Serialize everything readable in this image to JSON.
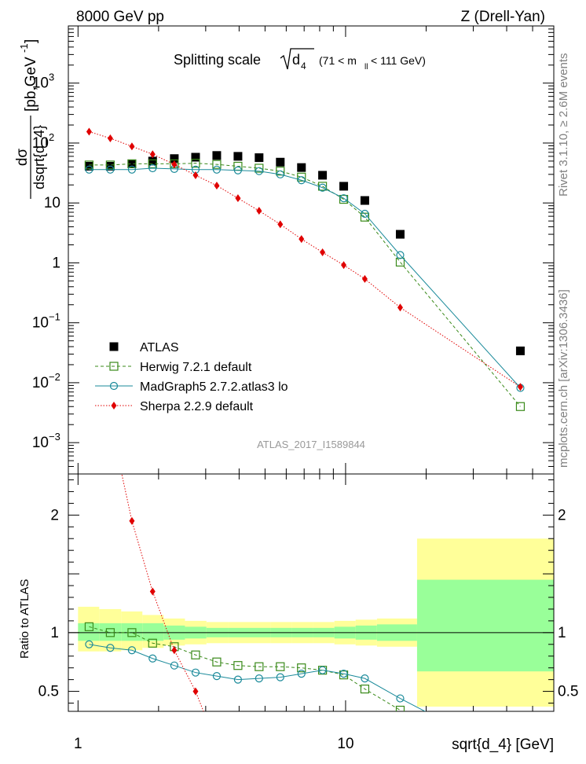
{
  "header": {
    "left": "8000 GeV pp",
    "right": "Z (Drell-Yan)"
  },
  "title": {
    "prefix": "Splitting scale",
    "symbol": "d",
    "sub": "4",
    "range_open": "(71 < m",
    "range_sub": "ll",
    "range_close": " < 111 GeV)"
  },
  "analysis_id": "ATLAS_2017_I1589844",
  "side_text": {
    "rivet": "Rivet 3.1.10, ≥ 2.6M events",
    "plots": "mcplots.cern.ch [arXiv:1306.3436]"
  },
  "xlabel": "sqrt{d_4} [GeV]",
  "ylabel_ratio": "Ratio to ATLAS",
  "ylabel_main": {
    "num": "dσ",
    "den": "dsqrt{d_4}",
    "unit": "[pb,GeV",
    "unit_sup": "-1",
    "unit_close": "]"
  },
  "colors": {
    "atlas": "#000000",
    "herwig": "#3a8a1a",
    "madgraph": "#1a8a9a",
    "sherpa": "#e00000",
    "band_inner": "#99ff99",
    "band_outer": "#ffff99"
  },
  "legend": [
    {
      "key": "atlas",
      "label": "ATLAS"
    },
    {
      "key": "herwig",
      "label": "Herwig 7.2.1 default"
    },
    {
      "key": "madgraph",
      "label": "MadGraph5 2.7.2.atlas3 lo"
    },
    {
      "key": "sherpa",
      "label": "Sherpa 2.2.9 default"
    }
  ],
  "chart_data": {
    "type": "scatter",
    "x_scale": "log",
    "y_scale": "log",
    "xlim": [
      0.92,
      60
    ],
    "ylim": [
      0.0003,
      9000
    ],
    "x_ticks": [
      {
        "v": 1,
        "label": "1"
      },
      {
        "v": 10,
        "label": "10"
      }
    ],
    "y_ticks": [
      {
        "v": 0.001,
        "m": "10",
        "e": "−3"
      },
      {
        "v": 0.01,
        "m": "10",
        "e": "−2"
      },
      {
        "v": 0.1,
        "m": "10",
        "e": "−1"
      },
      {
        "v": 1,
        "m": "1",
        "e": ""
      },
      {
        "v": 10,
        "m": "10",
        "e": ""
      },
      {
        "v": 100,
        "m": "10",
        "e": "2"
      },
      {
        "v": 1000,
        "m": "10",
        "e": "3"
      }
    ],
    "x": [
      1.1,
      1.32,
      1.59,
      1.9,
      2.29,
      2.75,
      3.3,
      3.96,
      4.75,
      5.7,
      6.84,
      8.2,
      9.84,
      11.8,
      16.0,
      45.0
    ],
    "series": [
      {
        "key": "atlas",
        "name": "ATLAS",
        "values": [
          41,
          41,
          45,
          50,
          55,
          58,
          62,
          60,
          57,
          48,
          39,
          29,
          19,
          11,
          3.0,
          0.034
        ]
      },
      {
        "key": "herwig",
        "name": "Herwig 7.2.1 default",
        "values": [
          43,
          43,
          45,
          45,
          45,
          46,
          44,
          41,
          38,
          34,
          27,
          19,
          11.5,
          5.8,
          1.03,
          0.004
        ]
      },
      {
        "key": "madgraph",
        "name": "MadGraph5 2.7.2.atlas3 lo",
        "values": [
          36,
          36,
          36,
          38,
          37,
          36,
          36,
          35,
          34,
          30,
          24,
          18,
          12,
          6.6,
          1.35,
          0.0082
        ]
      },
      {
        "key": "sherpa",
        "name": "Sherpa 2.2.9 default",
        "values": [
          155,
          120,
          88,
          65,
          44,
          29,
          19.5,
          12,
          7.4,
          4.4,
          2.5,
          1.5,
          0.92,
          0.54,
          0.18,
          0.0085
        ]
      }
    ],
    "ratio": {
      "ylim": [
        0.33,
        2.35
      ],
      "ticks": [
        {
          "v": 0.5,
          "label": "0.5"
        },
        {
          "v": 1,
          "label": "1"
        },
        {
          "v": 2,
          "label": "2"
        }
      ],
      "bins": [
        1.0,
        1.2,
        1.45,
        1.74,
        2.09,
        2.51,
        3.02,
        3.63,
        4.37,
        5.25,
        6.3,
        7.56,
        9.08,
        10.9,
        13.1,
        18.5,
        60
      ],
      "band_inner": [
        [
          0.93,
          1.08
        ],
        [
          0.93,
          1.08
        ],
        [
          0.93,
          1.08
        ],
        [
          0.93,
          1.08
        ],
        [
          0.94,
          1.06
        ],
        [
          0.95,
          1.05
        ],
        [
          0.96,
          1.04
        ],
        [
          0.96,
          1.04
        ],
        [
          0.96,
          1.04
        ],
        [
          0.96,
          1.04
        ],
        [
          0.96,
          1.04
        ],
        [
          0.96,
          1.04
        ],
        [
          0.95,
          1.05
        ],
        [
          0.94,
          1.06
        ],
        [
          0.93,
          1.07
        ],
        [
          0.67,
          1.45
        ]
      ],
      "band_outer": [
        [
          0.84,
          1.22
        ],
        [
          0.84,
          1.2
        ],
        [
          0.85,
          1.18
        ],
        [
          0.87,
          1.15
        ],
        [
          0.89,
          1.12
        ],
        [
          0.9,
          1.1
        ],
        [
          0.91,
          1.09
        ],
        [
          0.91,
          1.09
        ],
        [
          0.91,
          1.09
        ],
        [
          0.91,
          1.09
        ],
        [
          0.91,
          1.09
        ],
        [
          0.91,
          1.09
        ],
        [
          0.9,
          1.1
        ],
        [
          0.89,
          1.11
        ],
        [
          0.88,
          1.12
        ],
        [
          0.37,
          1.8
        ]
      ],
      "series": [
        {
          "key": "herwig",
          "x": [
            1.1,
            1.32,
            1.59,
            1.9,
            2.29,
            2.75,
            3.3,
            3.96,
            4.75,
            5.7,
            6.84,
            8.2,
            9.84,
            11.8,
            16.0
          ],
          "values": [
            1.05,
            1.0,
            1.0,
            0.91,
            0.88,
            0.81,
            0.75,
            0.72,
            0.71,
            0.71,
            0.7,
            0.68,
            0.64,
            0.52,
            0.34
          ]
        },
        {
          "key": "madgraph",
          "x": [
            1.1,
            1.32,
            1.59,
            1.9,
            2.29,
            2.75,
            3.3,
            3.96,
            4.75,
            5.7,
            6.84,
            8.2,
            9.84,
            11.8,
            16.0,
            21.0
          ],
          "values": [
            0.9,
            0.87,
            0.85,
            0.78,
            0.72,
            0.66,
            0.63,
            0.6,
            0.61,
            0.62,
            0.65,
            0.68,
            0.65,
            0.61,
            0.44,
            0.3
          ]
        },
        {
          "key": "sherpa",
          "x": [
            1.32,
            1.59,
            1.9,
            2.29,
            2.75,
            3.1
          ],
          "values": [
            2.8,
            1.95,
            1.35,
            0.85,
            0.5,
            0.2
          ]
        }
      ]
    }
  }
}
